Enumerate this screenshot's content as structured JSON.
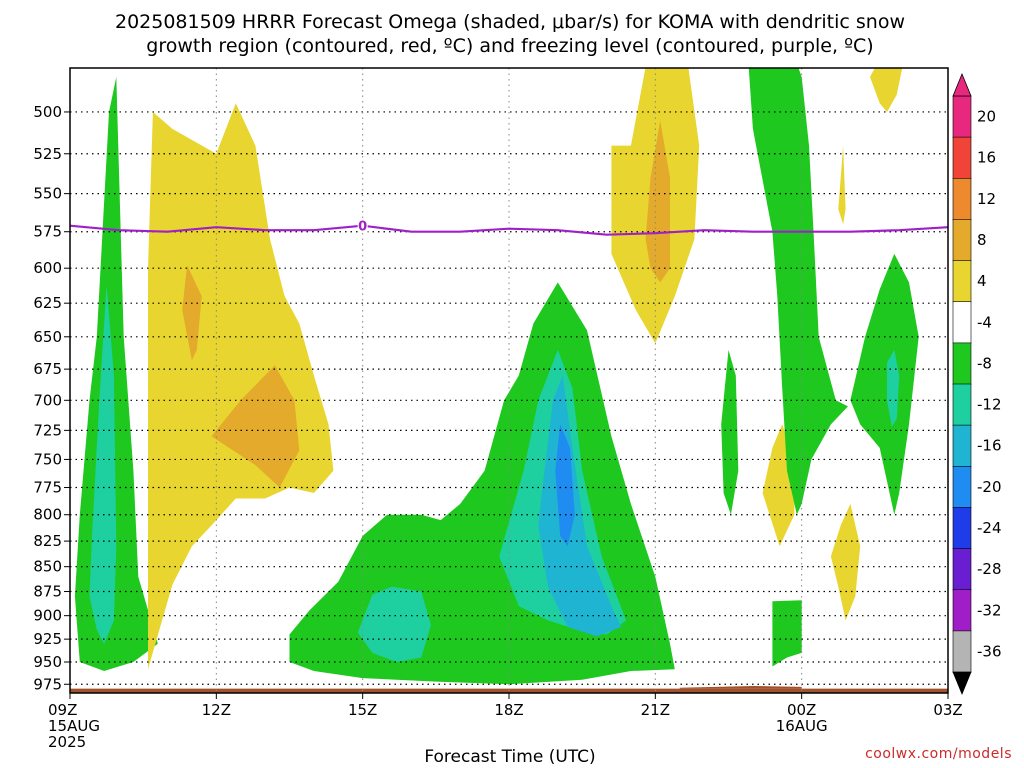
{
  "chart_data": {
    "type": "heatmap",
    "title_line1": "2025081509 HRRR Forecast Omega (shaded, μbar/s) for KOMA with dendritic snow",
    "title_line2": "growth region (contoured, red, ºC) and freezing level (contoured, purple, ºC)",
    "xlabel": "Forecast Time (UTC)",
    "credit": "coolwx.com/models",
    "x_ticks": [
      {
        "hour": 0,
        "lines": [
          "09Z",
          "15AUG",
          "2025"
        ]
      },
      {
        "hour": 3,
        "lines": [
          "12Z"
        ]
      },
      {
        "hour": 6,
        "lines": [
          "15Z"
        ]
      },
      {
        "hour": 9,
        "lines": [
          "18Z"
        ]
      },
      {
        "hour": 12,
        "lines": [
          "21Z"
        ]
      },
      {
        "hour": 15,
        "lines": [
          "00Z",
          "16AUG"
        ]
      },
      {
        "hour": 18,
        "lines": [
          "03Z"
        ]
      }
    ],
    "xlim": [
      0,
      18
    ],
    "y_ticks": [
      500,
      525,
      550,
      575,
      600,
      625,
      650,
      675,
      700,
      725,
      750,
      775,
      800,
      825,
      850,
      875,
      900,
      925,
      950,
      975
    ],
    "ylim": [
      475,
      985
    ],
    "y_scale": "log",
    "grid": true,
    "colorbar": {
      "labels": [
        "20",
        "16",
        "12",
        "8",
        "4",
        "-4",
        "-8",
        "-12",
        "-16",
        "-20",
        "-24",
        "-28",
        "-32",
        "-36"
      ],
      "colors": [
        "#e8287e",
        "#f04438",
        "#ee8a2e",
        "#e3aa2c",
        "#e8d530",
        "#ffffff",
        "#1ec81e",
        "#1ed0a0",
        "#1eb4d2",
        "#1e8cf0",
        "#1e3ce8",
        "#6a1ed2",
        "#a01ec8",
        "#b4b4b4"
      ],
      "top_color": "#e8287e",
      "bottom_color": "#000000"
    },
    "freezing_level": {
      "label": "0",
      "label_hour": 6.0,
      "points": [
        [
          0,
          571
        ],
        [
          1.0,
          574
        ],
        [
          2.0,
          575
        ],
        [
          3.0,
          572
        ],
        [
          4.0,
          574
        ],
        [
          5.0,
          574
        ],
        [
          6.0,
          571
        ],
        [
          7.0,
          575
        ],
        [
          8.0,
          575
        ],
        [
          9.0,
          573
        ],
        [
          10.0,
          574
        ],
        [
          11.0,
          577
        ],
        [
          12.0,
          576
        ],
        [
          13.0,
          574
        ],
        [
          14.0,
          575
        ],
        [
          15.0,
          575
        ],
        [
          16.0,
          575
        ],
        [
          17.0,
          574
        ],
        [
          18.0,
          572
        ]
      ]
    },
    "omega_regions": [
      {
        "level": "-4",
        "color": "#1ec81e",
        "points": [
          [
            0.2,
            950
          ],
          [
            0.1,
            880
          ],
          [
            0.2,
            800
          ],
          [
            0.4,
            700
          ],
          [
            0.55,
            650
          ],
          [
            0.8,
            500
          ],
          [
            0.95,
            480
          ],
          [
            1.1,
            650
          ],
          [
            1.3,
            760
          ],
          [
            1.4,
            860
          ],
          [
            1.8,
            930
          ],
          [
            1.3,
            950
          ],
          [
            0.7,
            960
          ]
        ]
      },
      {
        "level": "-8",
        "color": "#1ed0a0",
        "points": [
          [
            0.55,
            915
          ],
          [
            0.4,
            880
          ],
          [
            0.45,
            820
          ],
          [
            0.6,
            700
          ],
          [
            0.75,
            612
          ],
          [
            0.9,
            680
          ],
          [
            0.95,
            830
          ],
          [
            0.9,
            905
          ],
          [
            0.7,
            930
          ]
        ]
      },
      {
        "level": "4",
        "color": "#e8d530",
        "points": [
          [
            1.6,
            958
          ],
          [
            1.6,
            600
          ],
          [
            1.7,
            500
          ],
          [
            2.1,
            510
          ],
          [
            3.0,
            525
          ],
          [
            3.4,
            495
          ],
          [
            3.8,
            520
          ],
          [
            4.1,
            580
          ],
          [
            4.4,
            620
          ],
          [
            4.7,
            640
          ],
          [
            5.0,
            680
          ],
          [
            5.3,
            720
          ],
          [
            5.4,
            760
          ],
          [
            5.0,
            780
          ],
          [
            4.5,
            775
          ],
          [
            4.0,
            785
          ],
          [
            3.4,
            785
          ],
          [
            2.9,
            810
          ],
          [
            2.5,
            830
          ],
          [
            2.1,
            868
          ],
          [
            1.6,
            958
          ]
        ]
      },
      {
        "level": "8",
        "color": "#e3aa2c",
        "points": [
          [
            2.3,
            630
          ],
          [
            2.4,
            598
          ],
          [
            2.7,
            620
          ],
          [
            2.6,
            660
          ],
          [
            2.5,
            668
          ]
        ]
      },
      {
        "level": "8",
        "color": "#e3aa2c",
        "points": [
          [
            2.9,
            730
          ],
          [
            3.5,
            700
          ],
          [
            4.2,
            672
          ],
          [
            4.6,
            700
          ],
          [
            4.7,
            742
          ],
          [
            4.3,
            775
          ],
          [
            3.8,
            755
          ]
        ]
      },
      {
        "level": "-4",
        "color": "#1ec81e",
        "points": [
          [
            4.5,
            950
          ],
          [
            4.5,
            920
          ],
          [
            4.9,
            895
          ],
          [
            5.5,
            865
          ],
          [
            6.0,
            820
          ],
          [
            6.5,
            800
          ],
          [
            7.2,
            800
          ],
          [
            7.6,
            805
          ],
          [
            8.0,
            790
          ],
          [
            8.5,
            760
          ],
          [
            8.9,
            700
          ],
          [
            9.2,
            680
          ],
          [
            9.5,
            640
          ],
          [
            10.0,
            610
          ],
          [
            10.6,
            645
          ],
          [
            11.1,
            730
          ],
          [
            11.5,
            790
          ],
          [
            12.0,
            860
          ],
          [
            12.3,
            930
          ],
          [
            12.4,
            958
          ],
          [
            11.5,
            960
          ],
          [
            10.5,
            970
          ],
          [
            9.0,
            975
          ],
          [
            7.5,
            972
          ],
          [
            6.0,
            968
          ],
          [
            5.0,
            960
          ]
        ]
      },
      {
        "level": "-8",
        "color": "#1ed0a0",
        "points": [
          [
            5.9,
            918
          ],
          [
            6.2,
            878
          ],
          [
            6.6,
            870
          ],
          [
            7.2,
            875
          ],
          [
            7.4,
            910
          ],
          [
            7.2,
            945
          ],
          [
            6.7,
            950
          ],
          [
            6.2,
            940
          ]
        ]
      },
      {
        "level": "-8",
        "color": "#1ed0a0",
        "points": [
          [
            8.8,
            840
          ],
          [
            9.3,
            760
          ],
          [
            9.6,
            700
          ],
          [
            10.0,
            660
          ],
          [
            10.3,
            690
          ],
          [
            10.5,
            760
          ],
          [
            10.9,
            840
          ],
          [
            11.4,
            905
          ],
          [
            11.0,
            920
          ],
          [
            10.4,
            915
          ],
          [
            9.8,
            905
          ],
          [
            9.2,
            890
          ]
        ]
      },
      {
        "level": "-12",
        "color": "#1eb4d2",
        "points": [
          [
            9.7,
            770
          ],
          [
            9.9,
            700
          ],
          [
            10.1,
            680
          ],
          [
            10.3,
            740
          ],
          [
            10.6,
            830
          ],
          [
            11.1,
            890
          ],
          [
            11.3,
            912
          ],
          [
            10.8,
            922
          ],
          [
            10.2,
            912
          ],
          [
            9.8,
            870
          ],
          [
            9.6,
            810
          ]
        ]
      },
      {
        "level": "-16",
        "color": "#1e8cf0",
        "points": [
          [
            9.95,
            760
          ],
          [
            10.05,
            720
          ],
          [
            10.25,
            740
          ],
          [
            10.35,
            800
          ],
          [
            10.2,
            830
          ],
          [
            10.05,
            820
          ]
        ]
      },
      {
        "level": "4",
        "color": "#e8d530",
        "points": [
          [
            11.1,
            590
          ],
          [
            11.1,
            520
          ],
          [
            11.5,
            520
          ],
          [
            11.9,
            460
          ],
          [
            12.6,
            460
          ],
          [
            12.9,
            520
          ],
          [
            12.8,
            580
          ],
          [
            12.4,
            620
          ],
          [
            12.0,
            655
          ],
          [
            11.6,
            630
          ]
        ]
      },
      {
        "level": "8",
        "color": "#e3aa2c",
        "points": [
          [
            11.8,
            580
          ],
          [
            11.9,
            540
          ],
          [
            12.1,
            505
          ],
          [
            12.3,
            540
          ],
          [
            12.3,
            600
          ],
          [
            12.1,
            610
          ],
          [
            11.9,
            600
          ]
        ]
      },
      {
        "level": "-4",
        "color": "#1ec81e",
        "points": [
          [
            13.35,
            720
          ],
          [
            13.5,
            660
          ],
          [
            13.65,
            680
          ],
          [
            13.7,
            760
          ],
          [
            13.55,
            800
          ],
          [
            13.4,
            780
          ]
        ]
      },
      {
        "level": "4",
        "color": "#e8d530",
        "points": [
          [
            14.2,
            780
          ],
          [
            14.4,
            740
          ],
          [
            14.6,
            720
          ],
          [
            14.85,
            750
          ],
          [
            14.85,
            800
          ],
          [
            14.55,
            830
          ]
        ]
      },
      {
        "level": "-4",
        "color": "#1ec81e",
        "points": [
          [
            13.85,
            450
          ],
          [
            14.6,
            450
          ],
          [
            15.0,
            480
          ],
          [
            15.15,
            520
          ],
          [
            15.25,
            580
          ],
          [
            15.35,
            650
          ],
          [
            15.7,
            700
          ],
          [
            15.95,
            705
          ],
          [
            15.6,
            720
          ],
          [
            15.2,
            750
          ],
          [
            15.0,
            790
          ],
          [
            14.9,
            800
          ],
          [
            14.7,
            760
          ],
          [
            14.6,
            690
          ],
          [
            14.5,
            620
          ],
          [
            14.4,
            575
          ],
          [
            14.0,
            510
          ]
        ]
      },
      {
        "level": "-4",
        "color": "#1ec81e",
        "points": [
          [
            14.4,
            885
          ],
          [
            15.0,
            884
          ],
          [
            15.0,
            940
          ],
          [
            14.7,
            945
          ],
          [
            14.4,
            955
          ]
        ]
      },
      {
        "level": "-4",
        "color": "#1ec81e",
        "points": [
          [
            16.0,
            700
          ],
          [
            16.3,
            650
          ],
          [
            16.6,
            615
          ],
          [
            16.9,
            590
          ],
          [
            17.2,
            610
          ],
          [
            17.4,
            650
          ],
          [
            17.2,
            720
          ],
          [
            17.0,
            780
          ],
          [
            16.9,
            800
          ],
          [
            16.6,
            740
          ],
          [
            16.2,
            720
          ]
        ]
      },
      {
        "level": "-8",
        "color": "#1ed0a0",
        "points": [
          [
            16.75,
            670
          ],
          [
            16.9,
            660
          ],
          [
            17.0,
            680
          ],
          [
            16.95,
            715
          ],
          [
            16.85,
            722
          ],
          [
            16.75,
            700
          ]
        ]
      },
      {
        "level": "4",
        "color": "#e8d530",
        "points": [
          [
            15.6,
            840
          ],
          [
            15.8,
            810
          ],
          [
            16.0,
            790
          ],
          [
            16.2,
            830
          ],
          [
            16.1,
            880
          ],
          [
            15.9,
            905
          ],
          [
            15.75,
            870
          ]
        ]
      },
      {
        "level": "4",
        "color": "#e8d530",
        "points": [
          [
            15.75,
            560
          ],
          [
            15.8,
            540
          ],
          [
            15.85,
            520
          ],
          [
            15.9,
            560
          ],
          [
            15.85,
            570
          ]
        ]
      },
      {
        "level": "4",
        "color": "#e8d530",
        "points": [
          [
            16.4,
            480
          ],
          [
            16.6,
            470
          ],
          [
            17.1,
            470
          ],
          [
            16.95,
            490
          ],
          [
            16.75,
            500
          ],
          [
            16.6,
            495
          ]
        ]
      }
    ],
    "ground": {
      "color": "#a0522d",
      "base_level": 980,
      "bump": [
        [
          12.5,
          979
        ],
        [
          14.0,
          977
        ],
        [
          15.0,
          978
        ]
      ]
    }
  }
}
